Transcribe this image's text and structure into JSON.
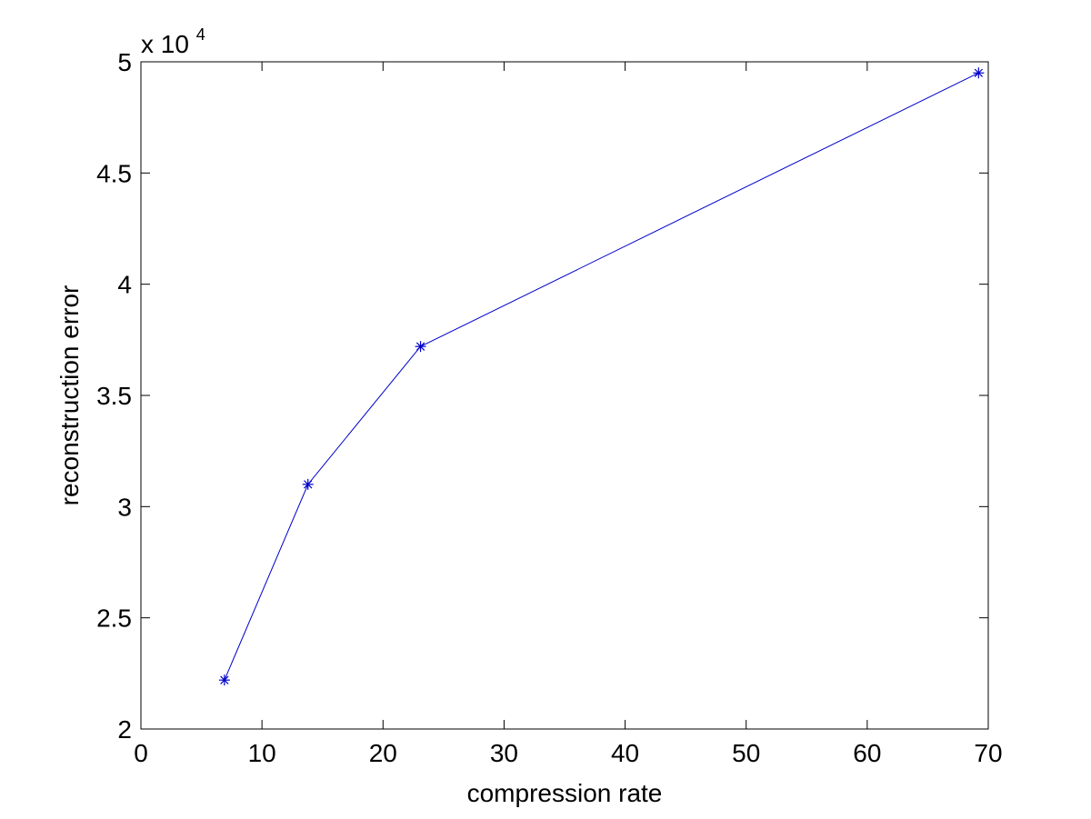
{
  "chart_data": {
    "type": "line",
    "title": "",
    "xlabel": "compression rate",
    "ylabel": "reconstruction error",
    "y_multiplier_label": "x 10",
    "y_multiplier_exponent": "4",
    "xlim": [
      0,
      70
    ],
    "ylim": [
      2,
      5
    ],
    "x_ticks": [
      0,
      10,
      20,
      30,
      40,
      50,
      60,
      70
    ],
    "y_ticks": [
      2,
      2.5,
      3,
      3.5,
      4,
      4.5,
      5
    ],
    "x_tick_labels": [
      "0",
      "10",
      "20",
      "30",
      "40",
      "50",
      "60",
      "70"
    ],
    "y_tick_labels": [
      "2",
      "2.5",
      "3",
      "3.5",
      "4",
      "4.5",
      "5"
    ],
    "grid": false,
    "legend": "none",
    "series": [
      {
        "marker": "asterisk",
        "color": "#0000cc",
        "x": [
          6.9,
          13.8,
          23.1,
          69.2
        ],
        "y": [
          2.22,
          3.1,
          3.72,
          4.95
        ]
      }
    ]
  }
}
